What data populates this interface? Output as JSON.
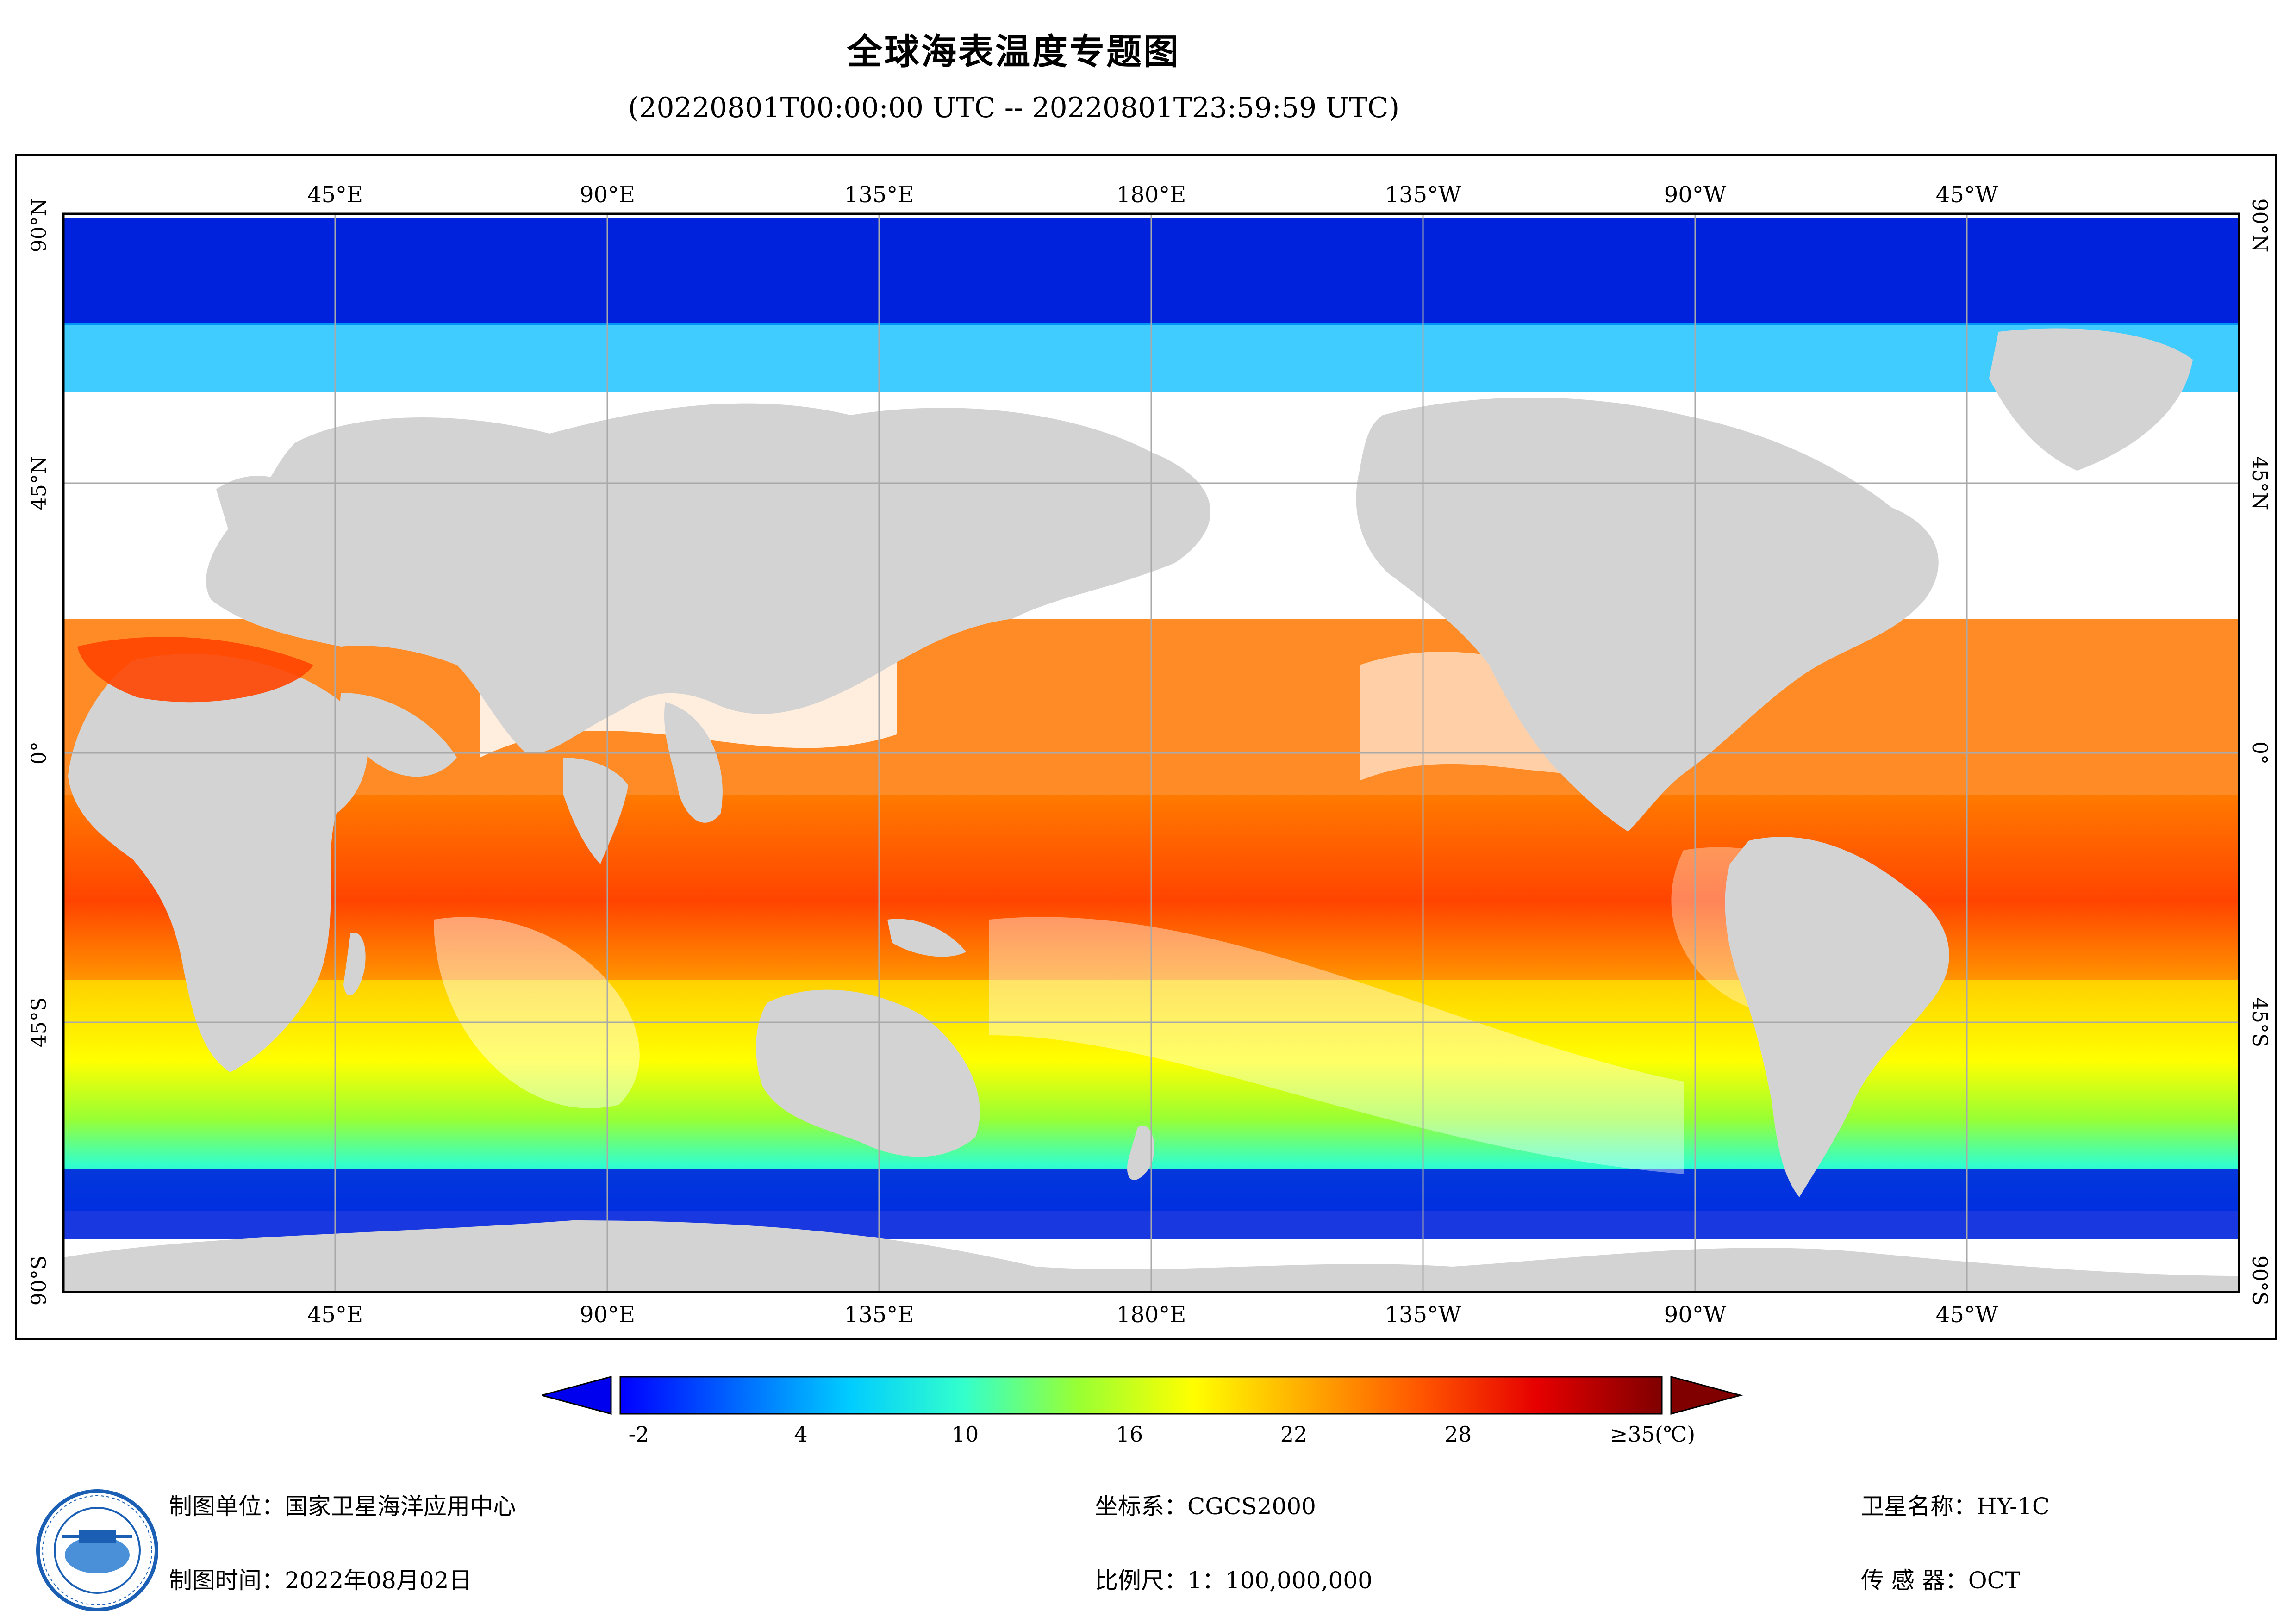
{
  "title": "全球海表温度专题图",
  "subtitle": "(20220801T00:00:00 UTC -- 20220801T23:59:59 UTC)",
  "map": {
    "lon_labels_top": [
      "45°E",
      "90°E",
      "135°E",
      "180°E",
      "135°W",
      "90°W",
      "45°W"
    ],
    "lon_labels_bottom": [
      "45°E",
      "90°E",
      "135°E",
      "180°E",
      "135°W",
      "90°W",
      "45°W"
    ],
    "lat_labels": [
      "90°N",
      "45°N",
      "0°",
      "45°S",
      "90°S"
    ],
    "colors": {
      "land": "#d3d3d3",
      "ocean_nodata": "#ffffff",
      "grid": "#a9a9a9"
    }
  },
  "colorbar": {
    "tick_labels": [
      "-2",
      "4",
      "10",
      "16",
      "22",
      "28",
      "≥35(℃)"
    ],
    "range": [
      -2,
      35
    ],
    "colors_low_to_high": [
      "#0000ff",
      "#0066ff",
      "#00ccff",
      "#33ffcc",
      "#99ff33",
      "#ffff00",
      "#ffaa00",
      "#ff5500",
      "#e60000",
      "#800000"
    ]
  },
  "footer": {
    "agency": "制图单位：国家卫星海洋应用中心",
    "date": "制图时间：2022年08月02日",
    "crs": "坐标系：CGCS2000",
    "scale": "比例尺：1：100,000,000",
    "satellite": "卫星名称：HY-1C",
    "sensor": "传 感 器：OCT"
  }
}
